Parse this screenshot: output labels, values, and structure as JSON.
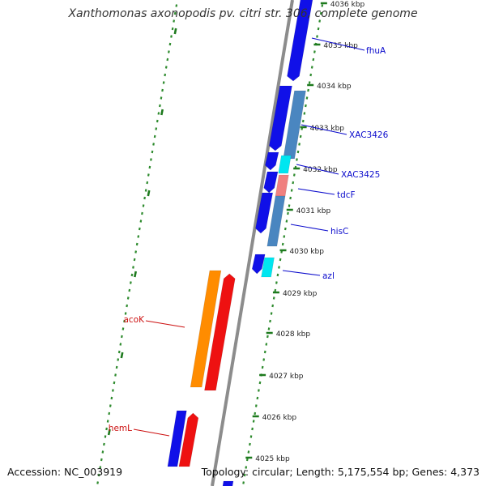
{
  "header": {
    "title": "Xanthomonas axonopodis pv. citri str. 306, complete genome"
  },
  "footer": {
    "accession": "Accession: NC_003919",
    "summary": "Topology: circular; Length: 5,175,554 bp; Genes: 4,373"
  },
  "colors": {
    "backbone": "#8c8c8c",
    "tick_major": "#1e7a1e",
    "tick_minor": "#2e8b2e",
    "axis_label": "#222222",
    "forward_label": "#0b0bcc",
    "reverse_label": "#cc1010",
    "cds_forward": "#1010e8",
    "cds_steel": "#4a86c0",
    "cds_cyan": "#00e6f0",
    "cds_pink": "#f08080",
    "cds_orange": "#ff8c00",
    "cds_red": "#ee1111"
  },
  "chart_data": {
    "type": "genome-map",
    "unit": "kbp",
    "axis_ticks": [
      "4025 kbp",
      "4026 kbp",
      "4027 kbp",
      "4028 kbp",
      "4029 kbp",
      "4030 kbp",
      "4031 kbp",
      "4032 kbp",
      "4033 kbp",
      "4034 kbp",
      "4035 kbp",
      "4036 kbp"
    ],
    "gene_labels": [
      {
        "name": "fhuA",
        "strand": "forward"
      },
      {
        "name": "XAC3426",
        "strand": "forward"
      },
      {
        "name": "XAC3425",
        "strand": "forward"
      },
      {
        "name": "tdcF",
        "strand": "forward"
      },
      {
        "name": "hisC",
        "strand": "forward"
      },
      {
        "name": "azl",
        "strand": "forward"
      },
      {
        "name": "acoK",
        "strand": "reverse"
      },
      {
        "name": "hemL",
        "strand": "reverse"
      }
    ]
  }
}
